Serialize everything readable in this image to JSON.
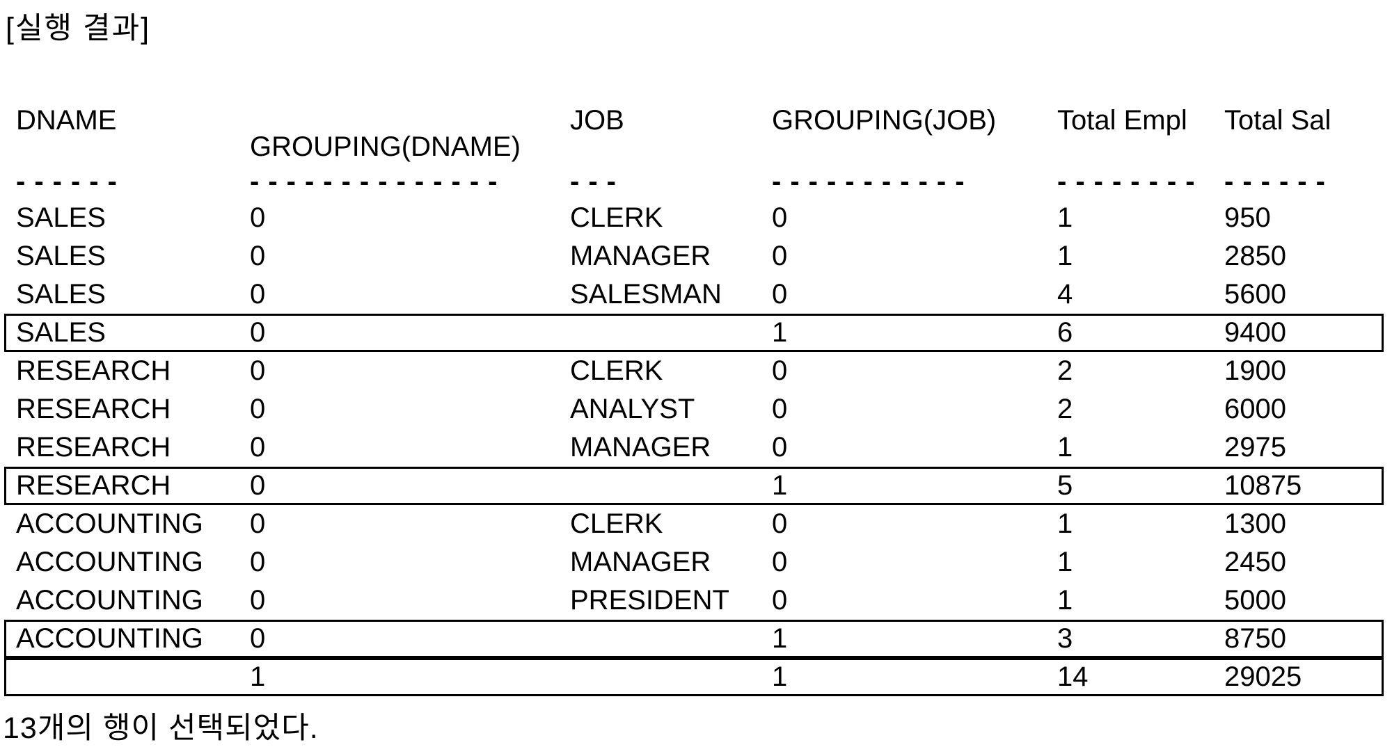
{
  "title": "[실행 결과]",
  "footer": "13개의 행이 선택되었다.",
  "colors": {
    "text": "#000000",
    "background": "#ffffff",
    "subtotal_box_border": "#000000"
  },
  "table": {
    "columns": [
      {
        "key": "dname",
        "label": "DNAME",
        "dashes": "------"
      },
      {
        "key": "grouping_dname",
        "label": "GROUPING(DNAME)",
        "dashes": "--------------"
      },
      {
        "key": "job",
        "label": "JOB",
        "dashes": "---"
      },
      {
        "key": "grouping_job",
        "label": "GROUPING(JOB)",
        "dashes": "-----------"
      },
      {
        "key": "total_empl",
        "label": "Total Empl",
        "dashes": "--------"
      },
      {
        "key": "total_sal",
        "label": "Total Sal",
        "dashes": "------"
      }
    ],
    "rows": [
      {
        "dname": "SALES",
        "grouping_dname": "0",
        "job": "CLERK",
        "grouping_job": "0",
        "total_empl": "1",
        "total_sal": "950",
        "boxed": false
      },
      {
        "dname": "SALES",
        "grouping_dname": "0",
        "job": "MANAGER",
        "grouping_job": "0",
        "total_empl": "1",
        "total_sal": "2850",
        "boxed": false
      },
      {
        "dname": "SALES",
        "grouping_dname": "0",
        "job": "SALESMAN",
        "grouping_job": "0",
        "total_empl": "4",
        "total_sal": "5600",
        "boxed": false
      },
      {
        "dname": "SALES",
        "grouping_dname": "0",
        "job": "",
        "grouping_job": "1",
        "total_empl": "6",
        "total_sal": "9400",
        "boxed": true
      },
      {
        "dname": "RESEARCH",
        "grouping_dname": "0",
        "job": "CLERK",
        "grouping_job": "0",
        "total_empl": "2",
        "total_sal": "1900",
        "boxed": false
      },
      {
        "dname": "RESEARCH",
        "grouping_dname": "0",
        "job": "ANALYST",
        "grouping_job": "0",
        "total_empl": "2",
        "total_sal": "6000",
        "boxed": false
      },
      {
        "dname": "RESEARCH",
        "grouping_dname": "0",
        "job": "MANAGER",
        "grouping_job": "0",
        "total_empl": "1",
        "total_sal": "2975",
        "boxed": false
      },
      {
        "dname": "RESEARCH",
        "grouping_dname": "0",
        "job": "",
        "grouping_job": "1",
        "total_empl": "5",
        "total_sal": "10875",
        "boxed": true
      },
      {
        "dname": "ACCOUNTING",
        "grouping_dname": "0",
        "job": "CLERK",
        "grouping_job": "0",
        "total_empl": "1",
        "total_sal": "1300",
        "boxed": false
      },
      {
        "dname": "ACCOUNTING",
        "grouping_dname": "0",
        "job": "MANAGER",
        "grouping_job": "0",
        "total_empl": "1",
        "total_sal": "2450",
        "boxed": false
      },
      {
        "dname": "ACCOUNTING",
        "grouping_dname": "0",
        "job": "PRESIDENT",
        "grouping_job": "0",
        "total_empl": "1",
        "total_sal": "5000",
        "boxed": false
      },
      {
        "dname": "ACCOUNTING",
        "grouping_dname": "0",
        "job": "",
        "grouping_job": "1",
        "total_empl": "3",
        "total_sal": "8750",
        "boxed": true
      },
      {
        "dname": "",
        "grouping_dname": "1",
        "job": "",
        "grouping_job": "1",
        "total_empl": "14",
        "total_sal": "29025",
        "boxed": true
      }
    ]
  }
}
